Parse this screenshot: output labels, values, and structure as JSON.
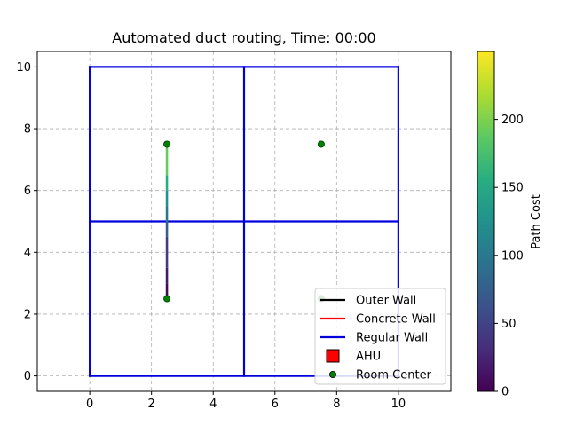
{
  "chart_data": {
    "type": "line",
    "title": "Automated duct routing, Time: 00:00",
    "xlim": [
      -1.7,
      11.7
    ],
    "ylim": [
      -0.5,
      10.5
    ],
    "xticks": [
      0,
      2,
      4,
      6,
      8,
      10
    ],
    "yticks": [
      0,
      2,
      4,
      6,
      8,
      10
    ],
    "grid": true,
    "walls": {
      "color": "#0000dd",
      "segments": [
        {
          "x": [
            0,
            10
          ],
          "y": [
            0,
            0
          ]
        },
        {
          "x": [
            10,
            10
          ],
          "y": [
            0,
            10
          ]
        },
        {
          "x": [
            10,
            0
          ],
          "y": [
            10,
            10
          ]
        },
        {
          "x": [
            0,
            0
          ],
          "y": [
            10,
            0
          ]
        },
        {
          "x": [
            5,
            5
          ],
          "y": [
            0,
            10
          ]
        },
        {
          "x": [
            0,
            10
          ],
          "y": [
            5,
            5
          ]
        }
      ]
    },
    "room_centers": {
      "color": "#008000",
      "points": [
        [
          2.5,
          2.5
        ],
        [
          2.5,
          7.5
        ],
        [
          7.5,
          7.5
        ],
        [
          7.5,
          2.5
        ]
      ]
    },
    "duct_path": {
      "x": [
        2.5,
        2.5,
        2.5,
        2.5,
        2.5,
        2.5,
        2.5,
        2.5,
        2.5
      ],
      "y": [
        2.5,
        3.0,
        3.5,
        4.5,
        5.0,
        5.5,
        6.0,
        6.5,
        7.5
      ],
      "cost": [
        0,
        10,
        25,
        60,
        90,
        110,
        140,
        170,
        210
      ]
    },
    "legend": {
      "position": "lower-right",
      "entries": [
        {
          "label": "Outer Wall",
          "kind": "line",
          "color": "#000000"
        },
        {
          "label": "Concrete Wall",
          "kind": "line",
          "color": "#ff0000"
        },
        {
          "label": "Regular Wall",
          "kind": "line",
          "color": "#0000dd"
        },
        {
          "label": "AHU",
          "kind": "square",
          "color": "#ff0000"
        },
        {
          "label": "Room Center",
          "kind": "circle",
          "color": "#008000"
        }
      ]
    },
    "colorbar": {
      "label": "Path Cost",
      "colormap": "viridis",
      "range": [
        0,
        250
      ],
      "ticks": [
        0,
        50,
        100,
        150,
        200
      ]
    }
  }
}
